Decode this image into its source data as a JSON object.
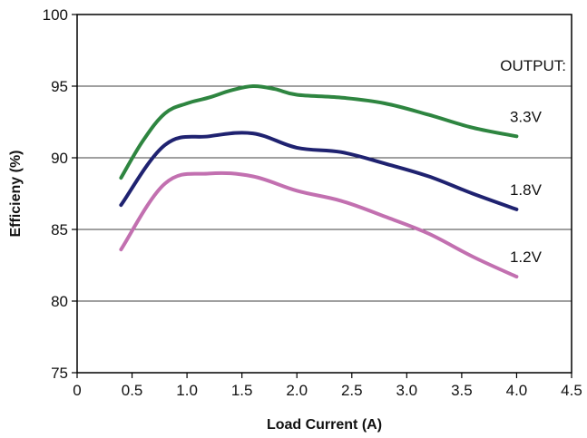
{
  "chart_data": {
    "type": "line",
    "xlabel": "Load Current (A)",
    "ylabel": "Efficieny (%)",
    "xlim": [
      0,
      4.5
    ],
    "ylim": [
      75,
      100
    ],
    "xticks": [
      "0",
      "0.5",
      "1.0",
      "1.5",
      "2.0",
      "2.5",
      "3.0",
      "3.5",
      "4.0",
      "4.5"
    ],
    "yticks": [
      "75",
      "80",
      "85",
      "90",
      "95",
      "100"
    ],
    "grid": "horizontal",
    "legend_title": "OUTPUT:",
    "series": [
      {
        "name": "3.3V",
        "color": "#2e8540",
        "x": [
          0.4,
          0.6,
          0.8,
          1.0,
          1.2,
          1.4,
          1.6,
          1.8,
          2.0,
          2.4,
          2.8,
          3.2,
          3.6,
          4.0
        ],
        "y": [
          88.6,
          91.2,
          93.1,
          93.8,
          94.2,
          94.7,
          95.0,
          94.8,
          94.4,
          94.2,
          93.8,
          93.0,
          92.1,
          91.5
        ]
      },
      {
        "name": "1.8V",
        "color": "#1f2270",
        "x": [
          0.4,
          0.8,
          1.2,
          1.6,
          2.0,
          2.4,
          2.8,
          3.2,
          3.6,
          4.0
        ],
        "y": [
          86.7,
          90.9,
          91.5,
          91.7,
          90.7,
          90.4,
          89.6,
          88.7,
          87.5,
          86.4
        ]
      },
      {
        "name": "1.2V",
        "color": "#c270b0",
        "x": [
          0.4,
          0.8,
          1.2,
          1.6,
          2.0,
          2.4,
          2.8,
          3.2,
          3.6,
          4.0
        ],
        "y": [
          83.6,
          88.2,
          88.9,
          88.7,
          87.7,
          87.0,
          85.9,
          84.7,
          83.1,
          81.7
        ]
      }
    ]
  }
}
